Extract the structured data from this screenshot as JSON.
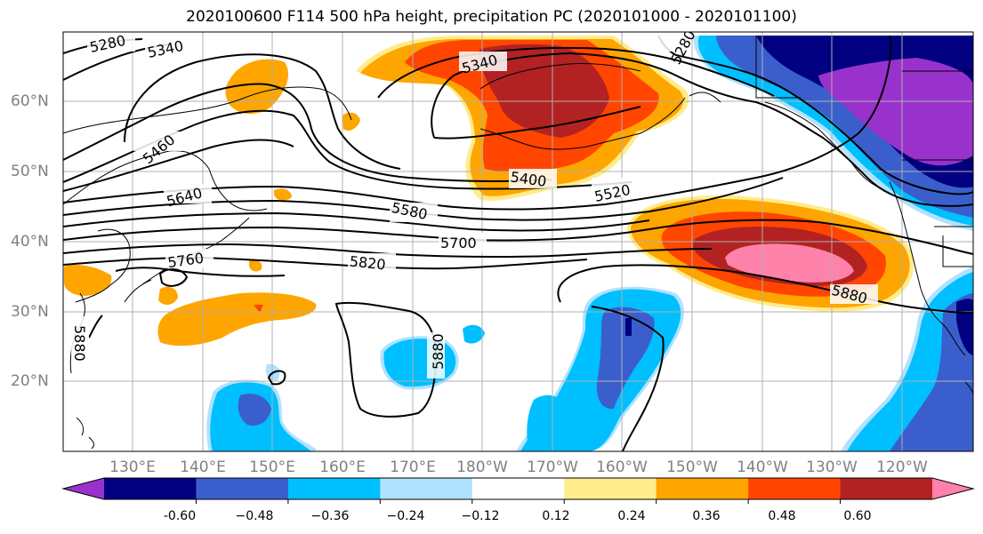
{
  "title": "2020100600 F114 500 hPa height, precipitation PC (2020101000 - 2020101100)",
  "map": {
    "lat_labels": [
      "60°N",
      "50°N",
      "40°N",
      "30°N",
      "20°N"
    ],
    "lon_labels": [
      "130°E",
      "140°E",
      "150°E",
      "160°E",
      "170°E",
      "180°W",
      "170°W",
      "160°W",
      "150°W",
      "140°W",
      "130°W",
      "120°W"
    ],
    "height_contour_labels": [
      "5280",
      "5340",
      "5340",
      "5280",
      "5460",
      "5400",
      "5520",
      "5640",
      "5580",
      "5700",
      "5760",
      "5820",
      "5880",
      "5880",
      "5880"
    ],
    "contour_line_color": "#000000",
    "coastline_color": "#000000",
    "gridline_color": "#b0b0b0"
  },
  "colorbar": {
    "levels": [
      "-0.60",
      "−0.48",
      "−0.36",
      "−0.24",
      "−0.12",
      "0.12",
      "0.24",
      "0.36",
      "0.48",
      "0.60"
    ],
    "colors": [
      "#9932cc",
      "#000080",
      "#3a5fcd",
      "#00bfff",
      "#b0e2ff",
      "#ffffff",
      "#ffec8b",
      "#ffa500",
      "#ff4500",
      "#b22222",
      "#ff82ab"
    ]
  }
}
